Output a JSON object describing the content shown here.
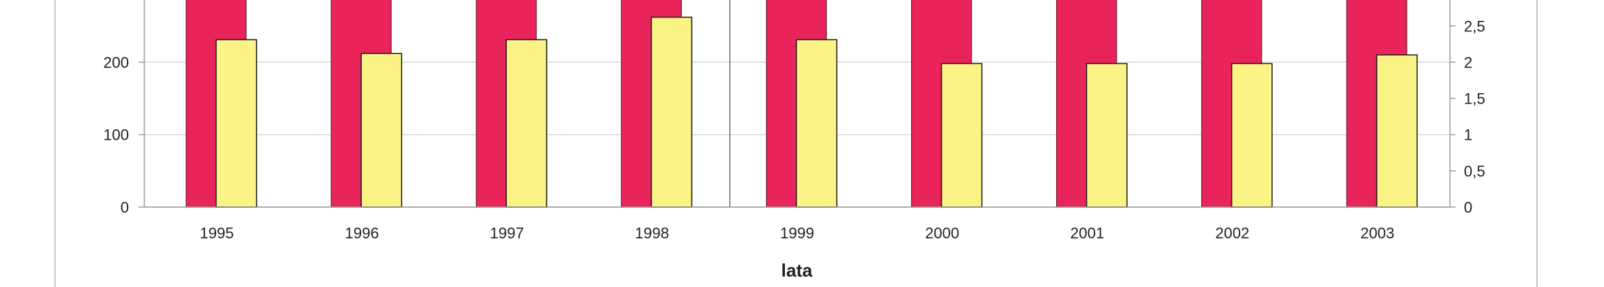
{
  "chart_data": {
    "type": "bar",
    "categories": [
      "1995",
      "1996",
      "1997",
      "1998",
      "1999",
      "2000",
      "2001",
      "2002",
      "2003"
    ],
    "xlabel": "lata",
    "y_left": {
      "ticks": [
        "0",
        "100",
        "200"
      ],
      "range": [
        0,
        290
      ]
    },
    "y_right": {
      "ticks": [
        "0",
        "0,5",
        "1",
        "1,5",
        "2",
        "2,5"
      ],
      "range": [
        0,
        2.9
      ]
    },
    "series": [
      {
        "axis": "left",
        "color": "#e8245a",
        "values": [
          290,
          290,
          290,
          290,
          290,
          290,
          290,
          290,
          290
        ]
      },
      {
        "axis": "right",
        "color": "#fbf385",
        "values": [
          2.31,
          2.12,
          2.31,
          2.62,
          2.31,
          1.98,
          1.98,
          1.98,
          2.1
        ]
      }
    ]
  }
}
